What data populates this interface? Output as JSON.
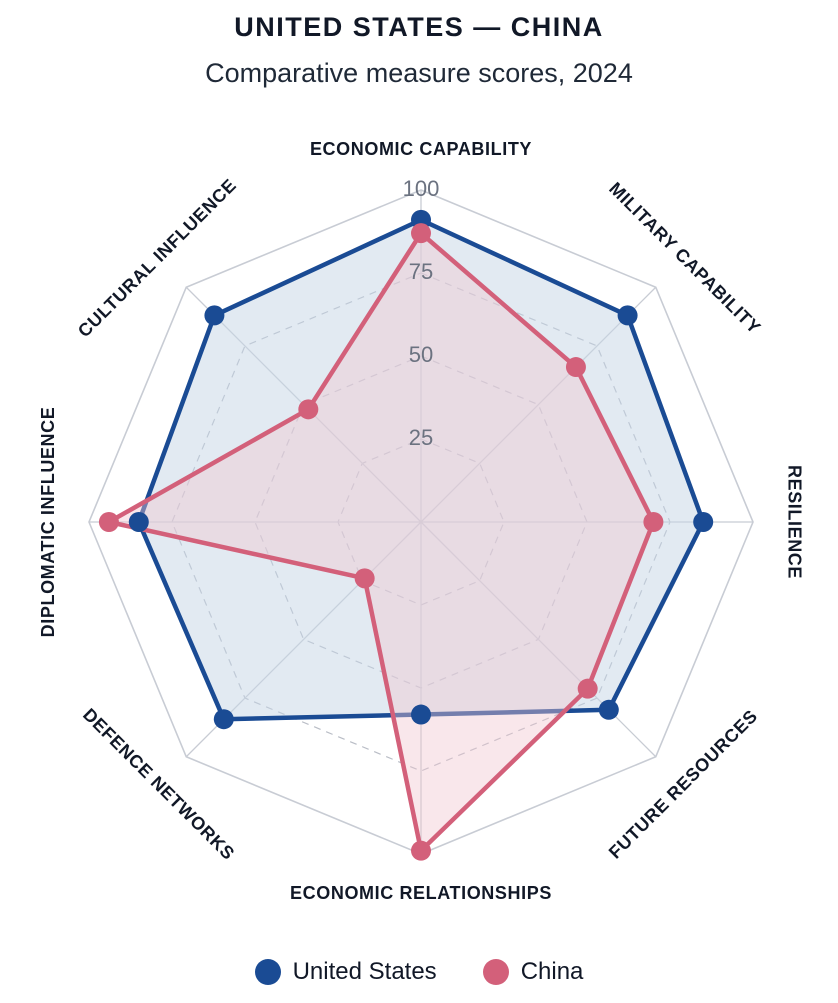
{
  "chart_data": {
    "type": "radar",
    "title": "UNITED STATES — CHINA",
    "subtitle": "Comparative measure scores, 2024",
    "axes": [
      "ECONOMIC CAPABILITY",
      "MILITARY CAPABILITY",
      "RESILIENCE",
      "FUTURE RESOURCES",
      "ECONOMIC RELATIONSHIPS",
      "DEFENCE NETWORKS",
      "DIPLOMATIC INFLUENCE",
      "CULTURAL INFLUENCE"
    ],
    "range": [
      0,
      100
    ],
    "ticks": [
      25,
      50,
      75,
      100
    ],
    "series": [
      {
        "name": "United States",
        "color": "#1a4b94",
        "fill": "#c5d6e6",
        "values": [
          91,
          88,
          85,
          80,
          58,
          84,
          85,
          88
        ]
      },
      {
        "name": "China",
        "color": "#d3607a",
        "fill": "#f0c6d0",
        "values": [
          87,
          66,
          70,
          71,
          99,
          24,
          94,
          48
        ]
      }
    ],
    "legend": "bottom"
  }
}
